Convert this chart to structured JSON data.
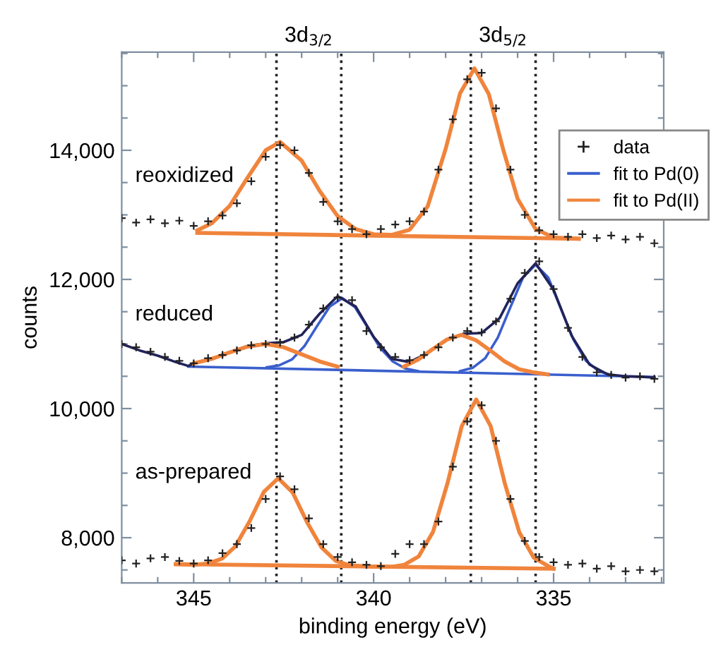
{
  "chart_data": {
    "type": "line",
    "xlabel": "binding energy (eV)",
    "ylabel": "counts",
    "xlim": [
      347,
      331.94
    ],
    "ylim": [
      7300,
      15520
    ],
    "xticks": [
      {
        "value": 347,
        "label": null
      },
      {
        "value": 346,
        "label": null
      },
      345,
      {
        "value": 344,
        "label": null
      },
      {
        "value": 343,
        "label": null
      },
      {
        "value": 342,
        "label": null
      },
      {
        "value": 341,
        "label": null
      },
      340,
      {
        "value": 339,
        "label": null
      },
      {
        "value": 338,
        "label": null
      },
      {
        "value": 337,
        "label": null
      },
      {
        "value": 336,
        "label": null
      },
      335,
      {
        "value": 334,
        "label": null
      },
      {
        "value": 333,
        "label": null
      },
      {
        "value": 332,
        "label": null
      }
    ],
    "yticks": [
      {
        "value": 7500,
        "label": null
      },
      {
        "value": 8000,
        "label": "8,000"
      },
      {
        "value": 8500,
        "label": null
      },
      {
        "value": 9000,
        "label": null
      },
      {
        "value": 9500,
        "label": null
      },
      {
        "value": 10000,
        "label": "10,000"
      },
      {
        "value": 10500,
        "label": null
      },
      {
        "value": 11000,
        "label": null
      },
      {
        "value": 11500,
        "label": null
      },
      {
        "value": 12000,
        "label": "12,000"
      },
      {
        "value": 12500,
        "label": null
      },
      {
        "value": 13000,
        "label": null
      },
      {
        "value": 13500,
        "label": null
      },
      {
        "value": 14000,
        "label": "14,000"
      },
      {
        "value": 14500,
        "label": null
      },
      {
        "value": 15000,
        "label": null
      },
      {
        "value": 15500,
        "label": null
      }
    ],
    "grid": false,
    "legend": "top right",
    "ref_lines": [
      {
        "axis": "x",
        "value": 342.7,
        "label": null,
        "color": "#222222",
        "line_style": "dotted"
      },
      {
        "axis": "x",
        "value": 340.9,
        "label": null,
        "color": "#222222",
        "line_style": "dotted"
      },
      {
        "axis": "x",
        "value": 337.3,
        "label": null,
        "color": "#222222",
        "line_style": "dotted"
      },
      {
        "axis": "x",
        "value": 335.5,
        "label": null,
        "color": "#222222",
        "line_style": "dotted"
      }
    ],
    "annotations": [
      "3d$_{3/2}$",
      "3d$_{5/2}$",
      "reoxidized",
      "reduced",
      "as-prepared"
    ],
    "series": [
      {
        "name": "data",
        "type": "scatter",
        "color": "#222222",
        "marker": "cross",
        "x": [
          347.0,
          346.6,
          346.2,
          345.8,
          345.4,
          345.0,
          344.6,
          344.2,
          343.8,
          343.4,
          343.0,
          342.6,
          342.2,
          341.8,
          341.4,
          341.0,
          340.6,
          340.2,
          339.8,
          339.4,
          339.0,
          338.6,
          338.2,
          337.8,
          337.4,
          337.0,
          336.6,
          336.2,
          335.8,
          335.4,
          335.0,
          334.6,
          334.2,
          333.8,
          333.4,
          333.0,
          332.6,
          332.2
        ],
        "values": [
          12950,
          12880,
          12930,
          12870,
          12910,
          12830,
          12900,
          12990,
          13180,
          13520,
          13900,
          14080,
          14000,
          13650,
          13200,
          12900,
          12780,
          12700,
          12780,
          12850,
          12900,
          13050,
          13700,
          14480,
          15100,
          15200,
          14650,
          13700,
          13000,
          12760,
          12700,
          12660,
          12700,
          12640,
          12680,
          12620,
          12660,
          12560
        ]
      },
      {
        "type": "scatter",
        "color": "#222222",
        "marker": "cross",
        "x": [
          347.0,
          346.6,
          346.2,
          345.8,
          345.4,
          345.0,
          344.6,
          344.2,
          343.8,
          343.4,
          343.0,
          342.6,
          342.2,
          341.8,
          341.4,
          341.0,
          340.6,
          340.2,
          339.8,
          339.4,
          339.0,
          338.6,
          338.2,
          337.8,
          337.4,
          337.0,
          336.6,
          336.2,
          335.8,
          335.4,
          335.0,
          334.6,
          334.2,
          333.8,
          333.4,
          333.0,
          332.6,
          332.2
        ],
        "values": [
          11000,
          10950,
          10880,
          10800,
          10740,
          10700,
          10780,
          10830,
          10900,
          10980,
          11000,
          11020,
          11100,
          11300,
          11550,
          11720,
          11680,
          11200,
          10950,
          10800,
          10750,
          10830,
          10950,
          11100,
          11200,
          11180,
          11350,
          11700,
          12100,
          12280,
          11850,
          11250,
          10800,
          10560,
          10520,
          10480,
          10500,
          10460
        ]
      },
      {
        "type": "scatter",
        "color": "#222222",
        "marker": "cross",
        "x": [
          347.0,
          346.6,
          346.2,
          345.8,
          345.4,
          345.0,
          344.6,
          344.2,
          343.8,
          343.4,
          343.0,
          342.6,
          342.2,
          341.8,
          341.4,
          341.0,
          340.6,
          340.2,
          339.8,
          339.4,
          339.0,
          338.6,
          338.2,
          337.8,
          337.4,
          337.0,
          336.6,
          336.2,
          335.8,
          335.4,
          335.0,
          334.6,
          334.2,
          333.8,
          333.4,
          333.0,
          332.6,
          332.2
        ],
        "values": [
          7650,
          7600,
          7680,
          7700,
          7640,
          7600,
          7650,
          7760,
          7900,
          8150,
          8600,
          8950,
          8750,
          8300,
          7900,
          7700,
          7620,
          7580,
          7560,
          7750,
          7900,
          7900,
          8250,
          9100,
          9800,
          10050,
          9500,
          8600,
          7950,
          7700,
          7620,
          7580,
          7600,
          7520,
          7560,
          7480,
          7500,
          7480
        ]
      },
      {
        "color": "#3a5fcd",
        "x": [
          345.15,
          332.2
        ],
        "values": [
          10650,
          10490
        ]
      },
      {
        "name": "fit to Pd(0)",
        "color": "#3a5fcd",
        "x": [
          342.97,
          342.62,
          342.27,
          341.92,
          341.57,
          341.22,
          340.87,
          340.52,
          340.17,
          339.82,
          339.47,
          339.12,
          338.77
        ],
        "values": [
          10640,
          10670,
          10760,
          10970,
          11280,
          11580,
          11710,
          11570,
          11260,
          10940,
          10730,
          10620,
          10580
        ]
      },
      {
        "color": "#3a5fcd",
        "x": [
          337.6,
          337.25,
          336.9,
          336.55,
          336.2,
          335.85,
          335.5,
          335.15,
          334.8,
          334.45,
          334.1,
          333.75,
          333.4
        ],
        "values": [
          10580,
          10630,
          10780,
          11100,
          11570,
          12030,
          12230,
          12030,
          11550,
          11070,
          10740,
          10580,
          10520
        ]
      },
      {
        "color": "#23235a",
        "x": [
          347.0,
          346.5,
          346.0,
          345.5,
          345.15,
          345.0,
          344.5,
          344.0,
          343.5,
          343.0,
          342.5,
          342.0,
          341.5,
          341.0,
          340.5,
          340.0,
          339.5,
          339.0,
          338.5,
          338.0,
          337.5,
          337.0,
          336.5,
          336.0,
          335.5,
          335.0,
          334.5,
          334.0,
          333.5,
          333.0,
          332.5,
          332.2
        ],
        "values": [
          11000,
          10900,
          10820,
          10720,
          10660,
          10700,
          10770,
          10870,
          10970,
          11010,
          11030,
          11140,
          11470,
          11740,
          11580,
          11110,
          10770,
          10720,
          10860,
          11060,
          11160,
          11170,
          11400,
          11940,
          12250,
          11840,
          11130,
          10680,
          10530,
          10500,
          10490,
          10480
        ]
      },
      {
        "color": "#f0843c",
        "x": [
          345.0,
          344.5,
          344.0,
          343.5,
          343.0,
          342.5,
          342.0,
          341.5,
          341.0
        ],
        "values": [
          10700,
          10770,
          10870,
          10960,
          11000,
          10950,
          10840,
          10730,
          10650
        ]
      },
      {
        "color": "#f0843c",
        "x": [
          339.16,
          338.76,
          338.36,
          337.96,
          337.56,
          337.16,
          336.76,
          336.36,
          335.96,
          335.56,
          335.16
        ],
        "values": [
          10650,
          10760,
          10920,
          11070,
          11140,
          11060,
          10900,
          10730,
          10610,
          10560,
          10530
        ]
      },
      {
        "color": "#f0843c",
        "x": [
          344.9,
          334.3
        ],
        "values": [
          12720,
          12630
        ]
      },
      {
        "name": "fit to Pd(II)",
        "color": "#f0843c",
        "x": [
          344.9,
          344.5,
          344.0,
          343.5,
          343.0,
          342.6,
          342.0,
          341.5,
          341.0,
          340.5,
          340.0,
          339.5,
          339.0,
          338.5,
          338.0,
          337.6,
          337.2,
          336.8,
          336.4,
          336.0,
          335.5,
          335.0,
          334.3
        ],
        "values": [
          12760,
          12870,
          13140,
          13580,
          14000,
          14130,
          13840,
          13370,
          12980,
          12780,
          12700,
          12690,
          12770,
          13130,
          14020,
          14880,
          15270,
          14870,
          14010,
          13250,
          12780,
          12650,
          12630
        ]
      },
      {
        "color": "#f0843c",
        "x": [
          345.5,
          335.0
        ],
        "values": [
          7590,
          7520
        ]
      },
      {
        "color": "#f0843c",
        "x": [
          345.5,
          345.0,
          344.6,
          344.2,
          343.85,
          343.45,
          343.05,
          342.65,
          342.25,
          341.85,
          341.45,
          341.05,
          340.65,
          340.0,
          339.5,
          339.15,
          338.75,
          338.35,
          337.95,
          337.55,
          337.15,
          336.75,
          336.35,
          335.95,
          335.55,
          335.15,
          335.0
        ],
        "values": [
          7590,
          7580,
          7600,
          7680,
          7860,
          8250,
          8710,
          8920,
          8700,
          8240,
          7850,
          7640,
          7570,
          7550,
          7550,
          7580,
          7710,
          8090,
          8840,
          9730,
          10140,
          9730,
          8830,
          8080,
          7690,
          7560,
          7520
        ]
      }
    ]
  }
}
